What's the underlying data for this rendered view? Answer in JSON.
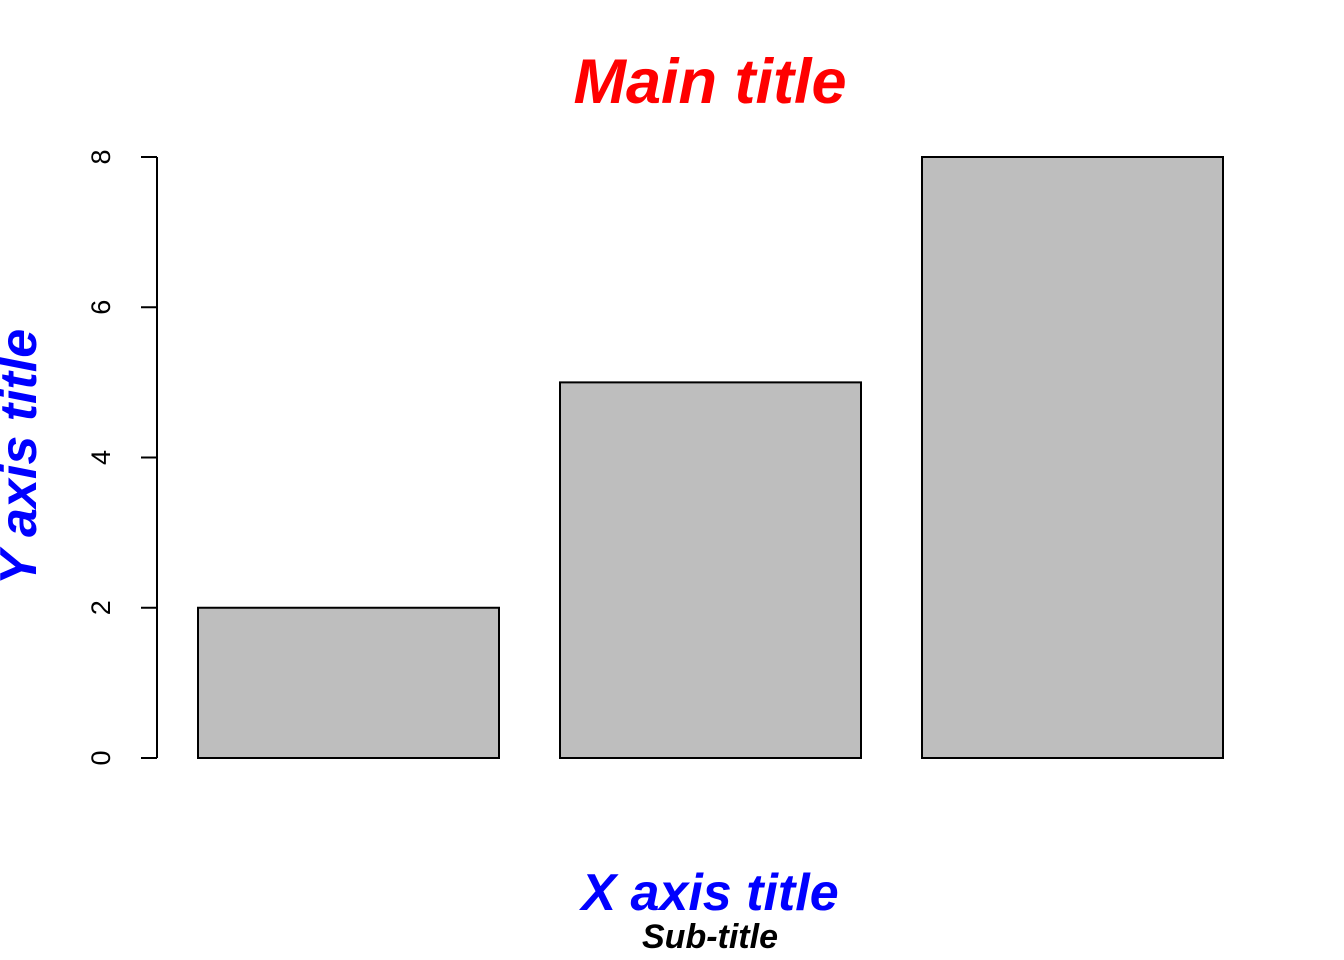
{
  "colors": {
    "title": "#ff0000",
    "axis_title": "#0000ff",
    "subtitle": "#000000",
    "bar_fill": "#bebebe",
    "bar_stroke": "#000000",
    "axis": "#000000"
  },
  "chart_data": {
    "type": "bar",
    "title": "Main title",
    "subtitle": "Sub-title",
    "xlabel": "X axis title",
    "ylabel": "Y axis title",
    "values": [
      2,
      5,
      8
    ],
    "ylim": [
      0,
      8
    ],
    "yticks": [
      "0",
      "2",
      "4",
      "6",
      "8"
    ],
    "grid": false,
    "legend": "none"
  }
}
